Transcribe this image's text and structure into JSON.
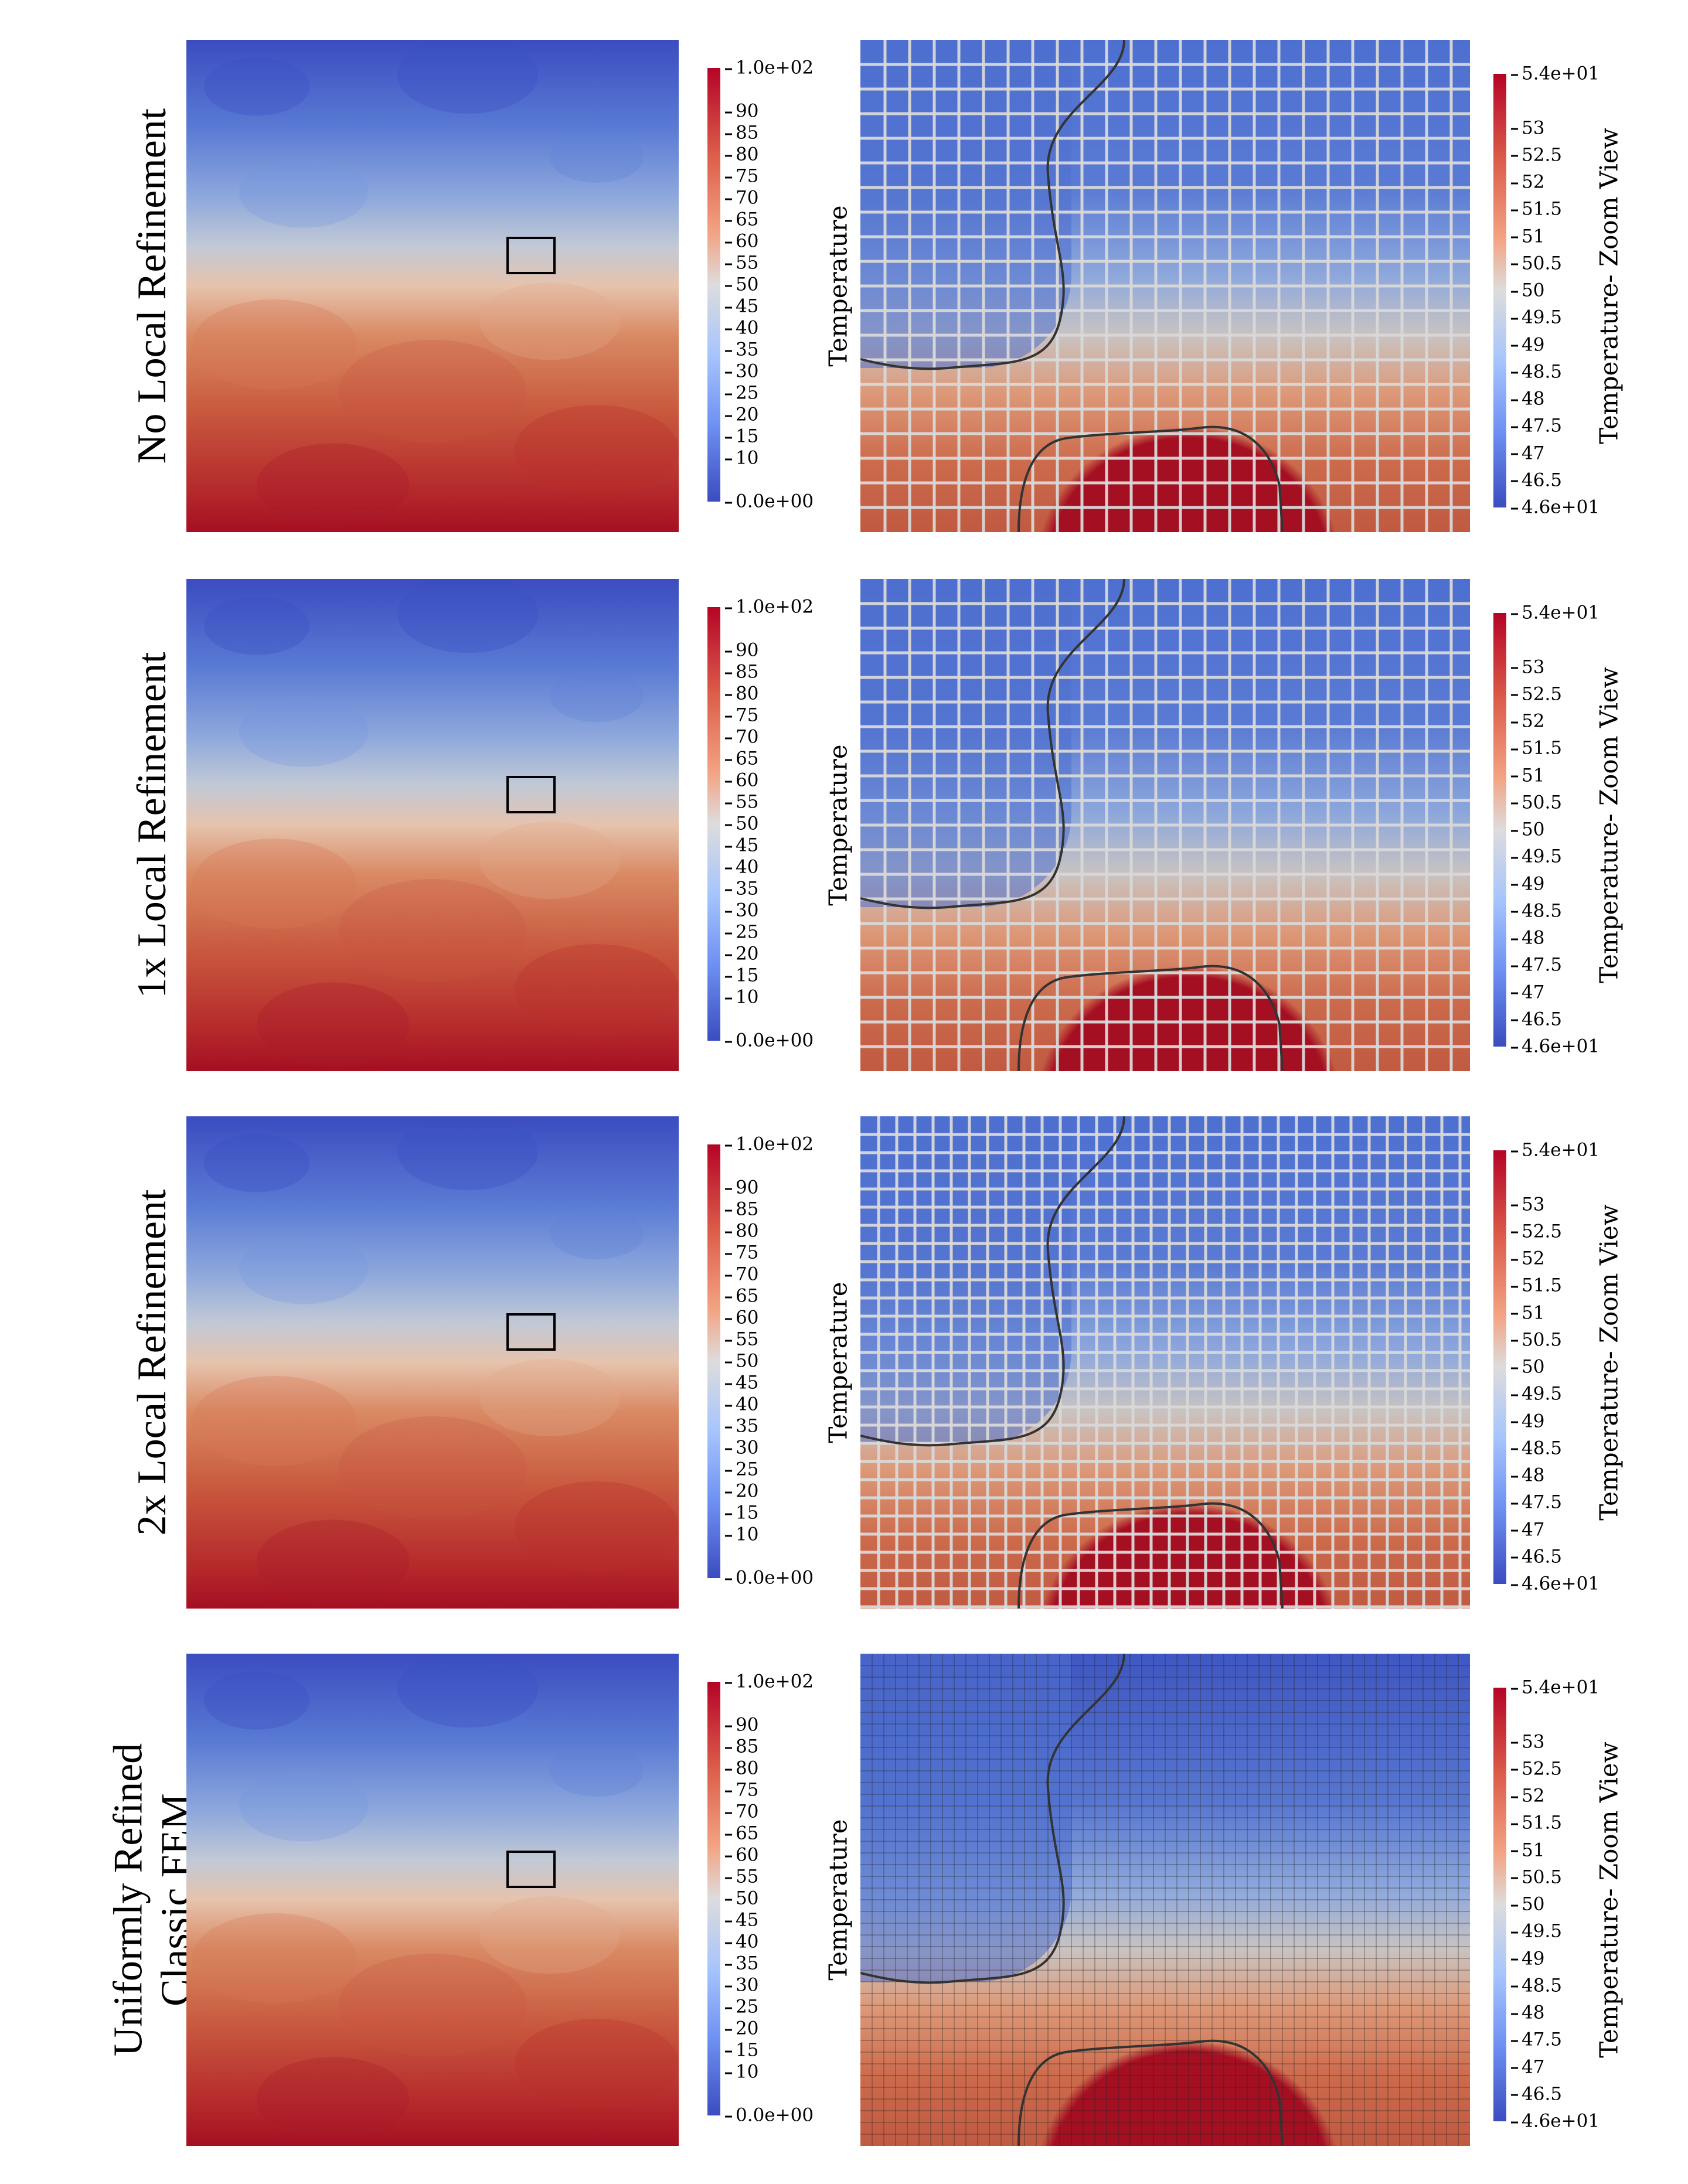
{
  "rows": [
    {
      "label_lines": [
        "No Local Refinement"
      ]
    },
    {
      "label_lines": [
        "1x Local Refinement"
      ]
    },
    {
      "label_lines": [
        "2x Local Refinement"
      ]
    },
    {
      "label_lines": [
        "Uniformly Refined",
        "Classic FEM"
      ]
    }
  ],
  "field_colorbar": {
    "ticks": [
      "1.0e+02",
      "90",
      "85",
      "80",
      "75",
      "70",
      "65",
      "60",
      "55",
      "50",
      "45",
      "40",
      "35",
      "30",
      "25",
      "20",
      "15",
      "10",
      "0.0e+00"
    ]
  },
  "zoom_colorbar": {
    "ticks": [
      "5.4e+01",
      "53",
      "52.5",
      "52",
      "51.5",
      "51",
      "50.5",
      "50",
      "49.5",
      "49",
      "48.5",
      "48",
      "47.5",
      "47",
      "46.5",
      "4.6e+01"
    ]
  },
  "axis_labels": {
    "temperature": "Temperature",
    "zoom": "Temperature- Zoom View"
  },
  "mesh_levels": [
    "coarse",
    "1x",
    "2x",
    "uniform"
  ]
}
